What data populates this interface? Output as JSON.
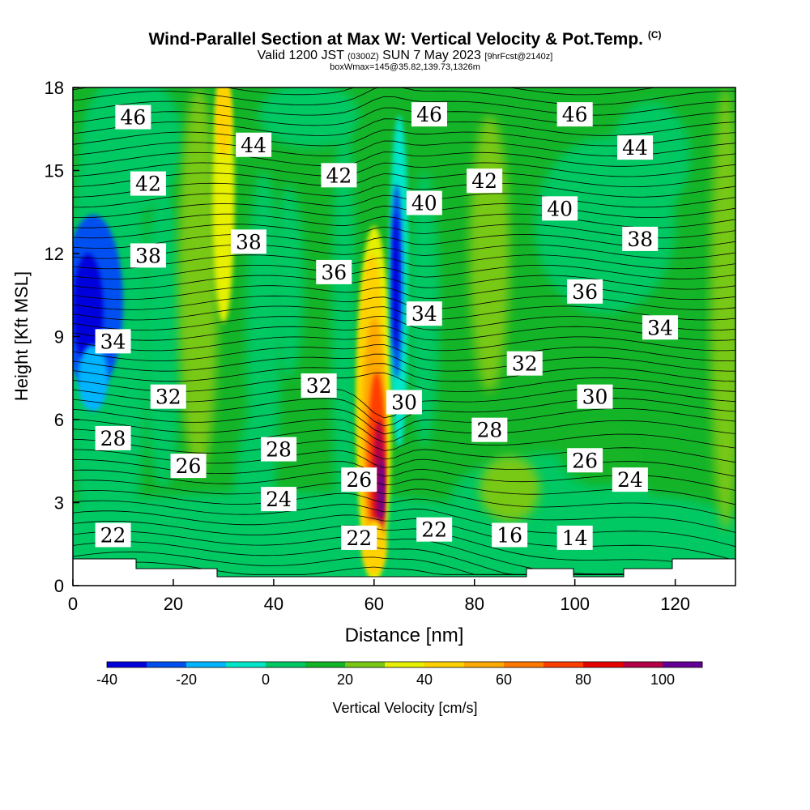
{
  "title": {
    "main": "Wind-Parallel Section at Max W: Vertical Velocity & Pot.Temp.",
    "copyright": "(C)",
    "valid_prefix": "Valid 1200 JST",
    "valid_utc": "(0300Z)",
    "valid_date": "SUN 7 May 2023",
    "forecast": "[9hrFcst@2140z]",
    "box_info": "boxWmax=145@35.82,139.73,1326m"
  },
  "chart_data": {
    "type": "heatmap",
    "xlabel": "Distance [nm]",
    "ylabel": "Height [Kft MSL]",
    "xlim": [
      0,
      132
    ],
    "ylim": [
      0,
      18
    ],
    "x_ticks": [
      0,
      20,
      40,
      60,
      80,
      100,
      120
    ],
    "y_ticks": [
      0,
      3,
      6,
      9,
      12,
      15,
      18
    ],
    "colorbar": {
      "label": "Vertical Velocity [cm/s]",
      "ticks": [
        -40,
        -20,
        0,
        20,
        40,
        60,
        80,
        100
      ],
      "levels": [
        -40,
        -30,
        -20,
        -10,
        0,
        10,
        20,
        30,
        40,
        50,
        60,
        70,
        80,
        90,
        100,
        110
      ],
      "colors": [
        "#0000dc",
        "#0050f0",
        "#00b4ff",
        "#00e6c8",
        "#00c864",
        "#14b428",
        "#78c814",
        "#e6f000",
        "#ffd200",
        "#ffaa00",
        "#ff7800",
        "#ff3c00",
        "#e60000",
        "#b40046",
        "#640096"
      ]
    },
    "regions": [
      {
        "desc": "background",
        "value": 15
      },
      {
        "desc": "cyan-left-column",
        "x": [
          0,
          14
        ],
        "y": [
          0,
          17
        ],
        "value": 5
      },
      {
        "desc": "blue-left",
        "x": [
          0,
          10
        ],
        "y": [
          7.5,
          13
        ],
        "value": -28
      },
      {
        "desc": "yellow-green-column",
        "x": [
          22,
          30
        ],
        "y": [
          5,
          18
        ],
        "value": 25
      },
      {
        "desc": "yellow-column",
        "x": [
          28,
          32
        ],
        "y": [
          11,
          18
        ],
        "value": 38
      },
      {
        "desc": "updraft-core",
        "x": [
          56,
          64
        ],
        "y": [
          1,
          12
        ],
        "value": 95
      },
      {
        "desc": "downdraft-core",
        "x": [
          63,
          66
        ],
        "y": [
          8.5,
          14
        ],
        "value": -35
      },
      {
        "desc": "cyan-right-upper",
        "x": [
          93,
          120
        ],
        "y": [
          10,
          16
        ],
        "value": 5
      },
      {
        "desc": "low-level-cyan",
        "x": [
          0,
          132
        ],
        "y": [
          0,
          3
        ],
        "value": 4
      }
    ],
    "theta_labels": [
      {
        "value": "46",
        "x": 12,
        "y": 16.9
      },
      {
        "value": "44",
        "x": 36,
        "y": 15.9
      },
      {
        "value": "46",
        "x": 71,
        "y": 17.0
      },
      {
        "value": "46",
        "x": 100,
        "y": 17.0
      },
      {
        "value": "44",
        "x": 112,
        "y": 15.8
      },
      {
        "value": "42",
        "x": 15,
        "y": 14.5
      },
      {
        "value": "42",
        "x": 53,
        "y": 14.8
      },
      {
        "value": "42",
        "x": 82,
        "y": 14.6
      },
      {
        "value": "40",
        "x": 70,
        "y": 13.8
      },
      {
        "value": "40",
        "x": 97,
        "y": 13.6
      },
      {
        "value": "38",
        "x": 15,
        "y": 11.9
      },
      {
        "value": "38",
        "x": 35,
        "y": 12.4
      },
      {
        "value": "38",
        "x": 113,
        "y": 12.5
      },
      {
        "value": "36",
        "x": 52,
        "y": 11.3
      },
      {
        "value": "36",
        "x": 102,
        "y": 10.6
      },
      {
        "value": "34",
        "x": 8,
        "y": 8.8
      },
      {
        "value": "34",
        "x": 70,
        "y": 9.8
      },
      {
        "value": "34",
        "x": 117,
        "y": 9.3
      },
      {
        "value": "32",
        "x": 19,
        "y": 6.8
      },
      {
        "value": "32",
        "x": 49,
        "y": 7.2
      },
      {
        "value": "32",
        "x": 90,
        "y": 8.0
      },
      {
        "value": "30",
        "x": 66,
        "y": 6.6
      },
      {
        "value": "30",
        "x": 104,
        "y": 6.8
      },
      {
        "value": "28",
        "x": 8,
        "y": 5.3
      },
      {
        "value": "28",
        "x": 41,
        "y": 4.9
      },
      {
        "value": "28",
        "x": 83,
        "y": 5.6
      },
      {
        "value": "26",
        "x": 23,
        "y": 4.3
      },
      {
        "value": "26",
        "x": 57,
        "y": 3.8
      },
      {
        "value": "26",
        "x": 102,
        "y": 4.5
      },
      {
        "value": "24",
        "x": 41,
        "y": 3.1
      },
      {
        "value": "24",
        "x": 111,
        "y": 3.8
      },
      {
        "value": "22",
        "x": 8,
        "y": 1.8
      },
      {
        "value": "22",
        "x": 57,
        "y": 1.7
      },
      {
        "value": "22",
        "x": 72,
        "y": 2.0
      },
      {
        "value": "16",
        "x": 87,
        "y": 1.8
      },
      {
        "value": "14",
        "x": 100,
        "y": 1.7
      }
    ]
  }
}
